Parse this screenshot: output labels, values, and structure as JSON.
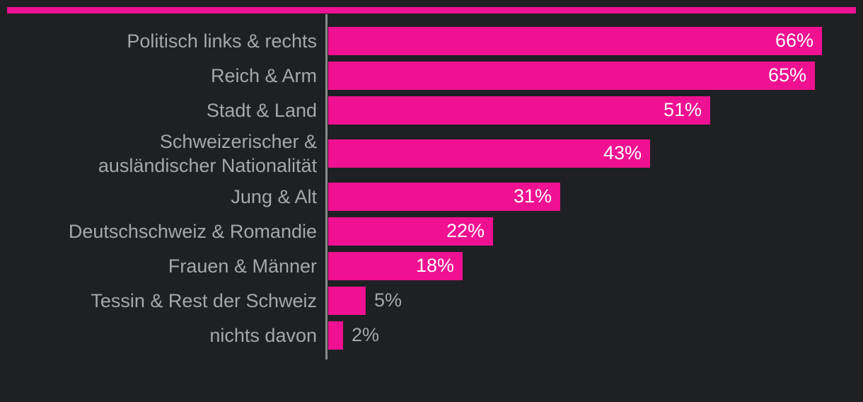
{
  "colors": {
    "background": "#1e2023",
    "bar": "#f01092",
    "accent_strip": "#f01092",
    "category_label": "#a5a7a9",
    "value_label_inside": "#ffffff",
    "value_label_outside": "#a5a7a9",
    "axis_line": "#8a8a8a"
  },
  "chart_data": {
    "type": "bar",
    "orientation": "horizontal",
    "title": "",
    "xlabel": "",
    "ylabel": "",
    "xlim": [
      0,
      71
    ],
    "grid": false,
    "legend": false,
    "value_unit": "%",
    "categories": [
      "Politisch links & rechts",
      "Reich & Arm",
      "Stadt & Land",
      "Schweizerischer & ausländischer Nationalität",
      "Jung & Alt",
      "Deutschschweiz & Romandie",
      "Frauen & Männer",
      "Tessin & Rest der Schweiz",
      "nichts davon"
    ],
    "values": [
      66,
      65,
      51,
      43,
      31,
      22,
      18,
      5,
      2
    ],
    "value_labels": [
      "66%",
      "65%",
      "51%",
      "43%",
      "31%",
      "22%",
      "18%",
      "5%",
      "2%"
    ],
    "bars": [
      {
        "label": "Politisch links & rechts",
        "label_lines": [
          "Politisch links & rechts"
        ],
        "value": 66,
        "display": "66%",
        "value_label_position": "inside"
      },
      {
        "label": "Reich & Arm",
        "label_lines": [
          "Reich & Arm"
        ],
        "value": 65,
        "display": "65%",
        "value_label_position": "inside"
      },
      {
        "label": "Stadt & Land",
        "label_lines": [
          "Stadt & Land"
        ],
        "value": 51,
        "display": "51%",
        "value_label_position": "inside"
      },
      {
        "label": "Schweizerischer & ausländischer Nationalität",
        "label_lines": [
          "Schweizerischer &",
          "ausländischer Nationalität"
        ],
        "value": 43,
        "display": "43%",
        "value_label_position": "inside"
      },
      {
        "label": "Jung & Alt",
        "label_lines": [
          "Jung & Alt"
        ],
        "value": 31,
        "display": "31%",
        "value_label_position": "inside"
      },
      {
        "label": "Deutschschweiz & Romandie",
        "label_lines": [
          "Deutschschweiz & Romandie"
        ],
        "value": 22,
        "display": "22%",
        "value_label_position": "inside"
      },
      {
        "label": "Frauen & Männer",
        "label_lines": [
          "Frauen & Männer"
        ],
        "value": 18,
        "display": "18%",
        "value_label_position": "inside"
      },
      {
        "label": "Tessin & Rest der Schweiz",
        "label_lines": [
          "Tessin & Rest der Schweiz"
        ],
        "value": 5,
        "display": "5%",
        "value_label_position": "outside"
      },
      {
        "label": "nichts davon",
        "label_lines": [
          "nichts davon"
        ],
        "value": 2,
        "display": "2%",
        "value_label_position": "outside"
      }
    ]
  }
}
